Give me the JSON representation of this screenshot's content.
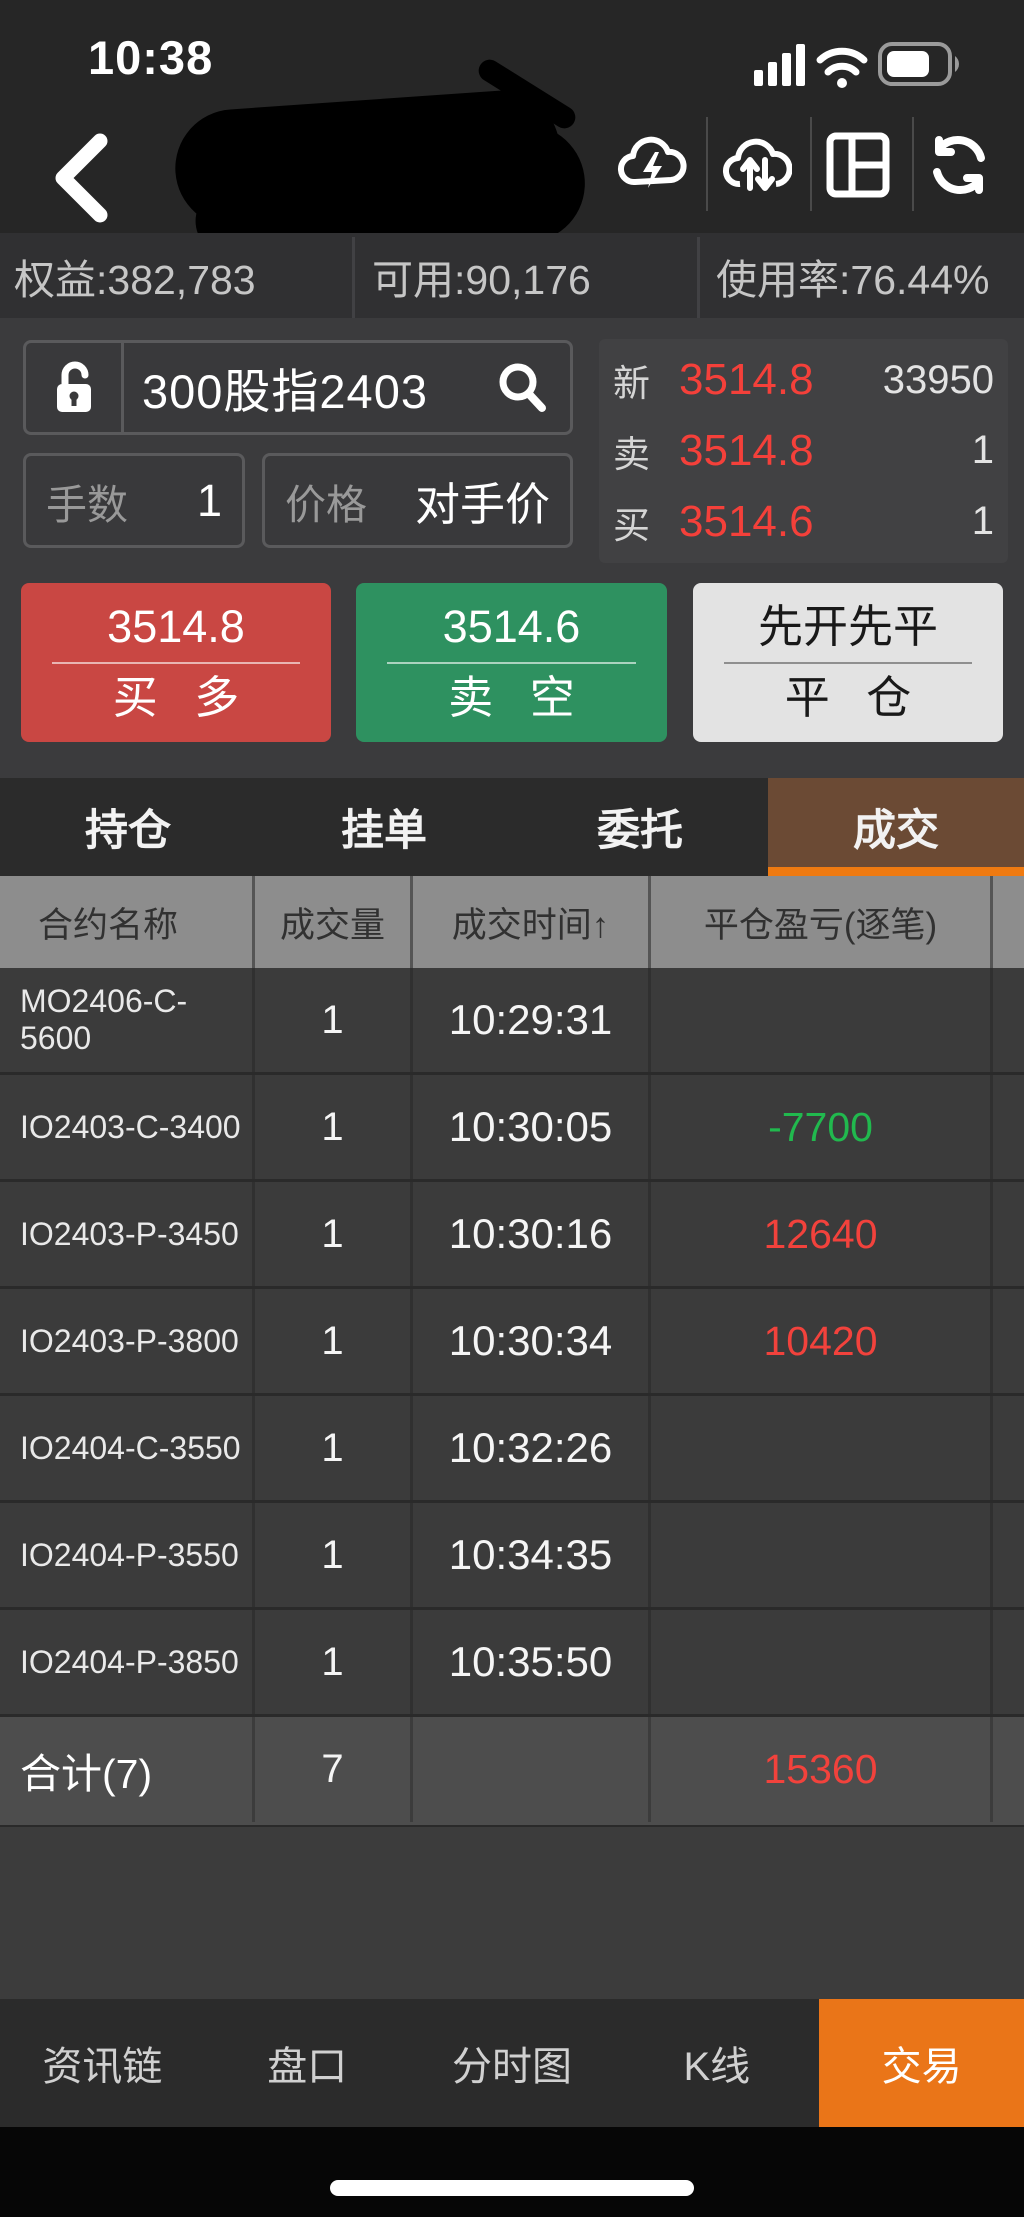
{
  "status_bar": {
    "time": "10:38"
  },
  "nav_bar": {
    "back_icon": "chevron-left",
    "title_redacted": true,
    "icons": [
      "cloud-bolt-icon",
      "cloud-sync-icon",
      "layout-icon",
      "refresh-icon"
    ]
  },
  "account_bar": {
    "equity": "权益:382,783",
    "available": "可用:90,176",
    "usage": "使用率:76.44%"
  },
  "order_panel": {
    "instrument": "300股指2403",
    "lots_label": "手数",
    "lots_value": "1",
    "price_label": "价格",
    "price_value": "对手价"
  },
  "quote": {
    "rows": [
      {
        "label": "新",
        "price": "3514.8",
        "size": "33950"
      },
      {
        "label": "卖",
        "price": "3514.8",
        "size": "1"
      },
      {
        "label": "买",
        "price": "3514.6",
        "size": "1"
      }
    ]
  },
  "actions": {
    "buy": {
      "price": "3514.8",
      "label": "买 多"
    },
    "sell": {
      "price": "3514.6",
      "label": "卖 空"
    },
    "close": {
      "price": "先开先平",
      "label": "平 仓"
    }
  },
  "tabs": {
    "items": [
      {
        "label": "持仓",
        "active": false
      },
      {
        "label": "挂单",
        "active": false
      },
      {
        "label": "委托",
        "active": false
      },
      {
        "label": "成交",
        "active": true
      }
    ]
  },
  "table": {
    "headers": [
      "合约名称",
      "成交量",
      "成交时间↑",
      "平仓盈亏(逐笔)"
    ],
    "rows": [
      {
        "name": "MO2406-C-5600",
        "qty": "1",
        "time": "10:29:31",
        "pnl": "",
        "pnl_color": ""
      },
      {
        "name": "IO2403-C-3400",
        "qty": "1",
        "time": "10:30:05",
        "pnl": "-7700",
        "pnl_color": "green"
      },
      {
        "name": "IO2403-P-3450",
        "qty": "1",
        "time": "10:30:16",
        "pnl": "12640",
        "pnl_color": "red"
      },
      {
        "name": "IO2403-P-3800",
        "qty": "1",
        "time": "10:30:34",
        "pnl": "10420",
        "pnl_color": "red"
      },
      {
        "name": "IO2404-C-3550",
        "qty": "1",
        "time": "10:32:26",
        "pnl": "",
        "pnl_color": ""
      },
      {
        "name": "IO2404-P-3550",
        "qty": "1",
        "time": "10:34:35",
        "pnl": "",
        "pnl_color": ""
      },
      {
        "name": "IO2404-P-3850",
        "qty": "1",
        "time": "10:35:50",
        "pnl": "",
        "pnl_color": ""
      }
    ],
    "total": {
      "name": "合计(7)",
      "qty": "7",
      "time": "",
      "pnl": "15360",
      "pnl_color": "red"
    }
  },
  "bottom_nav": {
    "items": [
      {
        "label": "资讯链",
        "active": false
      },
      {
        "label": "盘口",
        "active": false
      },
      {
        "label": "分时图",
        "active": false
      },
      {
        "label": "K线",
        "active": false
      },
      {
        "label": "交易",
        "active": true
      }
    ]
  },
  "colors": {
    "buy_red": "#c94743",
    "sell_green": "#2e9160",
    "accent_orange": "#ea7518",
    "tab_active_brown": "#6b4a34",
    "tab_underline": "#ef7a11",
    "pnl_red": "#f2423c",
    "pnl_green": "#21b94e",
    "quote_red": "#f4403a"
  }
}
